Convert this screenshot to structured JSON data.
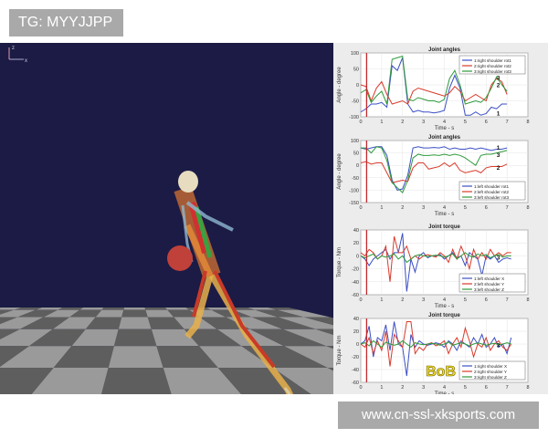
{
  "tag_label": "TG: MYYJJPP",
  "watermark": "www.cn-ssl-xksports.com",
  "scene": {
    "axis_label": "x",
    "axis_label_z": "z",
    "floor_colors": [
      "#9a9a9a",
      "#5e5e5e"
    ],
    "background": "#1b1b45",
    "ball_color": "#c0403a"
  },
  "logo_text": "BoB",
  "colors": {
    "s1": "#3b4fc4",
    "s2": "#d93a2b",
    "s3": "#2e9a3a",
    "marker": "#c0282b"
  },
  "chart_data": [
    {
      "type": "line",
      "title": "Joint angles",
      "xlabel": "Time - s",
      "ylabel": "Angle - degree",
      "xlim": [
        0,
        8
      ],
      "ylim": [
        -100,
        100
      ],
      "yticks": [
        -100,
        -50,
        0,
        50,
        100
      ],
      "xticks": [
        0,
        1,
        2,
        3,
        4,
        5,
        6,
        7,
        8
      ],
      "grid": true,
      "legend": "top-right",
      "marker_time": 0.28,
      "x": [
        0,
        0.25,
        0.5,
        0.75,
        1,
        1.25,
        1.5,
        1.75,
        2,
        2.25,
        2.5,
        2.75,
        3,
        3.25,
        3.5,
        3.75,
        4,
        4.25,
        4.5,
        4.75,
        5,
        5.25,
        5.5,
        5.75,
        6,
        6.25,
        6.5,
        6.75,
        7
      ],
      "series": [
        {
          "name": "1:right shoulder rot1",
          "values": [
            -85,
            -75,
            -60,
            -60,
            -55,
            -70,
            60,
            45,
            85,
            -60,
            -85,
            -80,
            -85,
            -85,
            -88,
            -85,
            -80,
            -10,
            30,
            -10,
            -95,
            -95,
            -85,
            -95,
            -90,
            -70,
            -75,
            -60,
            -60
          ]
        },
        {
          "name": "2:right shoulder rot2",
          "values": [
            0,
            -5,
            -50,
            -10,
            10,
            -30,
            -60,
            -55,
            -50,
            -60,
            -20,
            -10,
            -15,
            -20,
            -25,
            -30,
            -35,
            -25,
            -5,
            -20,
            -50,
            -40,
            -30,
            -40,
            -50,
            0,
            20,
            10,
            -30
          ]
        },
        {
          "name": "3:right shoulder rot3",
          "values": [
            -25,
            -15,
            -55,
            -35,
            -20,
            -60,
            80,
            85,
            90,
            -45,
            -50,
            -40,
            -45,
            -50,
            -50,
            -55,
            -45,
            20,
            45,
            0,
            -60,
            -55,
            -50,
            -55,
            -40,
            -10,
            25,
            0,
            -20
          ]
        }
      ],
      "annotations": [
        {
          "text": "3",
          "x": 6.5,
          "y": 22
        },
        {
          "text": "2",
          "x": 6.5,
          "y": 5
        },
        {
          "text": "1",
          "x": 6.5,
          "y": -90
        }
      ]
    },
    {
      "type": "line",
      "title": "Joint angles",
      "xlabel": "Time - s",
      "ylabel": "Angle - degree",
      "xlim": [
        0,
        8
      ],
      "ylim": [
        -150,
        100
      ],
      "yticks": [
        -150,
        -100,
        -50,
        0,
        50,
        100
      ],
      "xticks": [
        0,
        1,
        2,
        3,
        4,
        5,
        6,
        7,
        8
      ],
      "grid": true,
      "legend": "bottom-right",
      "marker_time": 0.28,
      "x": [
        0,
        0.25,
        0.5,
        0.75,
        1,
        1.25,
        1.5,
        1.75,
        2,
        2.25,
        2.5,
        2.75,
        3,
        3.25,
        3.5,
        3.75,
        4,
        4.25,
        4.5,
        4.75,
        5,
        5.25,
        5.5,
        5.75,
        6,
        6.25,
        6.5,
        6.75,
        7
      ],
      "series": [
        {
          "name": "1:left shoulder rot1",
          "values": [
            70,
            65,
            70,
            75,
            75,
            40,
            -60,
            -100,
            -95,
            -40,
            70,
            75,
            70,
            70,
            72,
            70,
            75,
            65,
            70,
            65,
            65,
            70,
            65,
            70,
            65,
            60,
            65,
            65,
            70
          ]
        },
        {
          "name": "2:left shoulder rot2",
          "values": [
            10,
            15,
            5,
            10,
            10,
            -30,
            -70,
            -65,
            -60,
            -65,
            -10,
            10,
            10,
            -15,
            -10,
            -5,
            10,
            -5,
            10,
            -20,
            -30,
            -25,
            -20,
            -30,
            -10,
            -5,
            -5,
            -5,
            5
          ]
        },
        {
          "name": "3:left shoulder rot3",
          "values": [
            70,
            70,
            50,
            75,
            70,
            20,
            -70,
            -90,
            -110,
            -60,
            30,
            45,
            40,
            40,
            42,
            40,
            45,
            40,
            45,
            40,
            30,
            15,
            0,
            40,
            45,
            45,
            50,
            55,
            60
          ]
        }
      ],
      "annotations": [
        {
          "text": "1",
          "x": 6.5,
          "y": 70
        },
        {
          "text": "3",
          "x": 6.5,
          "y": 45
        },
        {
          "text": "2",
          "x": 6.5,
          "y": -10
        }
      ]
    },
    {
      "type": "line",
      "title": "Joint torque",
      "xlabel": "Time - s",
      "ylabel": "Torque - Nm",
      "xlim": [
        0,
        8
      ],
      "ylim": [
        -60,
        40
      ],
      "yticks": [
        -60,
        -40,
        -20,
        0,
        20,
        40
      ],
      "xticks": [
        0,
        1,
        2,
        3,
        4,
        5,
        6,
        7,
        8
      ],
      "grid": true,
      "legend": "bottom-right",
      "marker_time": 0.28,
      "x": [
        0,
        0.2,
        0.4,
        0.6,
        0.8,
        1,
        1.2,
        1.4,
        1.6,
        1.8,
        2,
        2.2,
        2.4,
        2.6,
        2.8,
        3,
        3.2,
        3.4,
        3.6,
        3.8,
        4,
        4.2,
        4.4,
        4.6,
        4.8,
        5,
        5.2,
        5.4,
        5.6,
        5.8,
        6,
        6.2,
        6.4,
        6.6,
        6.8,
        7,
        7.2
      ],
      "series": [
        {
          "name": "1:left shoulder X",
          "values": [
            0,
            -5,
            -15,
            -5,
            0,
            5,
            10,
            -5,
            5,
            5,
            35,
            -55,
            -5,
            -25,
            0,
            5,
            -3,
            0,
            0,
            2,
            -5,
            0,
            5,
            -3,
            0,
            -15,
            5,
            0,
            -5,
            -30,
            0,
            -5,
            0,
            -10,
            -5,
            -3,
            -5
          ]
        },
        {
          "name": "2:left shoulder Y",
          "values": [
            5,
            0,
            10,
            5,
            -5,
            0,
            15,
            -40,
            30,
            5,
            5,
            15,
            -5,
            0,
            -5,
            0,
            2,
            0,
            -2,
            5,
            0,
            -10,
            10,
            -5,
            15,
            0,
            -20,
            10,
            -5,
            5,
            -5,
            10,
            0,
            5,
            0,
            5,
            5
          ]
        },
        {
          "name": "3:left shoulder Z",
          "values": [
            0,
            -3,
            0,
            3,
            -5,
            0,
            -2,
            0,
            3,
            -5,
            0,
            -10,
            -5,
            0,
            2,
            0,
            -1,
            0,
            1,
            0,
            -2,
            0,
            3,
            -5,
            0,
            5,
            0,
            -2,
            3,
            0,
            2,
            -3,
            0,
            2,
            -2,
            0,
            0
          ]
        }
      ],
      "annotations": [
        {
          "text": "3",
          "x": 6.5,
          "y": -3
        }
      ]
    },
    {
      "type": "line",
      "title": "Joint torque",
      "xlabel": "Time - s",
      "ylabel": "Torque - Nm",
      "xlim": [
        0,
        8
      ],
      "ylim": [
        -60,
        40
      ],
      "yticks": [
        -60,
        -40,
        -20,
        0,
        20,
        40
      ],
      "xticks": [
        0,
        1,
        2,
        3,
        4,
        5,
        6,
        7,
        8
      ],
      "grid": true,
      "legend": "bottom-right",
      "marker_time": 0.28,
      "x": [
        0,
        0.2,
        0.4,
        0.6,
        0.8,
        1,
        1.2,
        1.4,
        1.6,
        1.8,
        2,
        2.2,
        2.4,
        2.6,
        2.8,
        3,
        3.2,
        3.4,
        3.6,
        3.8,
        4,
        4.2,
        4.4,
        4.6,
        4.8,
        5,
        5.2,
        5.4,
        5.6,
        5.8,
        6,
        6.2,
        6.4,
        6.6,
        6.8,
        7,
        7.2
      ],
      "series": [
        {
          "name": "1:right shoulder X",
          "values": [
            0,
            5,
            28,
            -20,
            10,
            5,
            30,
            -10,
            35,
            0,
            -5,
            -50,
            15,
            -5,
            5,
            0,
            -2,
            0,
            2,
            0,
            -5,
            5,
            0,
            -10,
            5,
            0,
            -5,
            10,
            0,
            15,
            -5,
            0,
            10,
            -5,
            0,
            -15,
            10
          ]
        },
        {
          "name": "2:right shoulder Y",
          "values": [
            0,
            -5,
            10,
            -15,
            5,
            -10,
            20,
            -35,
            15,
            5,
            -5,
            35,
            35,
            -15,
            -5,
            -10,
            0,
            2,
            -3,
            0,
            5,
            -15,
            0,
            10,
            -5,
            25,
            5,
            -20,
            0,
            -5,
            10,
            -10,
            0,
            5,
            -5,
            -10,
            0
          ]
        },
        {
          "name": "3:right shoulder Z",
          "values": [
            0,
            2,
            -3,
            5,
            0,
            -5,
            3,
            0,
            -2,
            0,
            5,
            0,
            -5,
            2,
            0,
            -1,
            0,
            1,
            0,
            -2,
            0,
            3,
            -2,
            0,
            2,
            0,
            -3,
            0,
            2,
            0,
            -2,
            0,
            1,
            -1,
            0,
            2,
            0
          ]
        }
      ],
      "annotations": [
        {
          "text": "3",
          "x": 6.5,
          "y": -2
        }
      ]
    }
  ]
}
